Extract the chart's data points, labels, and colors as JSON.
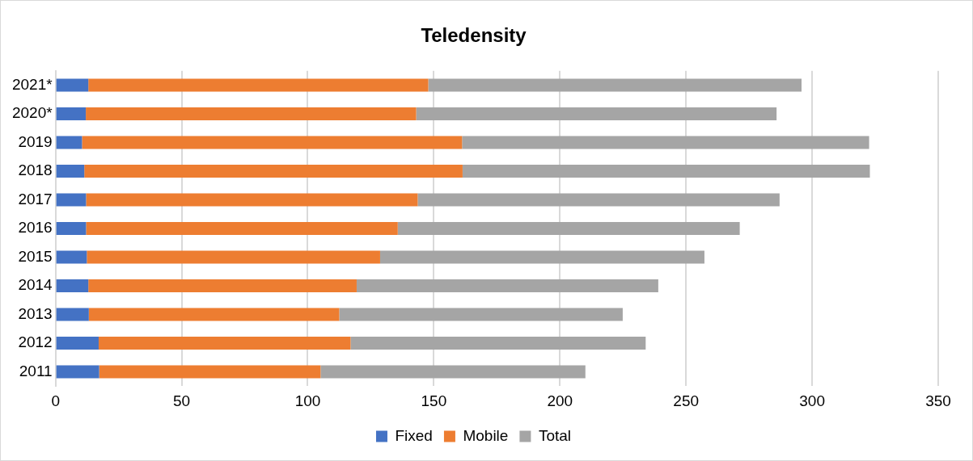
{
  "chart_data": {
    "type": "bar",
    "title": "Teledensity",
    "orientation": "horizontal",
    "stacked": true,
    "categories": [
      "2021*",
      "2020*",
      "2019",
      "2018",
      "2017",
      "2016",
      "2015",
      "2014",
      "2013",
      "2012",
      "2011"
    ],
    "series": [
      {
        "name": "Fixed",
        "color": "#4472c4",
        "values": [
          13.0,
          12.0,
          10.5,
          11.4,
          12.1,
          12.1,
          12.4,
          13.0,
          13.2,
          17.1,
          17.3
        ]
      },
      {
        "name": "Mobile",
        "color": "#ed7d31",
        "values": [
          134.8,
          131.0,
          150.7,
          150.0,
          131.5,
          123.6,
          116.3,
          106.4,
          99.3,
          99.9,
          87.8
        ]
      },
      {
        "name": "Total",
        "color": "#a5a5a5",
        "values": [
          148.0,
          142.9,
          161.4,
          161.5,
          143.5,
          135.6,
          128.6,
          119.6,
          112.4,
          117.0,
          105.0
        ]
      }
    ],
    "xlim": [
      0,
      350
    ],
    "xticks": [
      0,
      50,
      100,
      150,
      200,
      250,
      300,
      350
    ],
    "grid": "x",
    "legend": "bottom"
  }
}
